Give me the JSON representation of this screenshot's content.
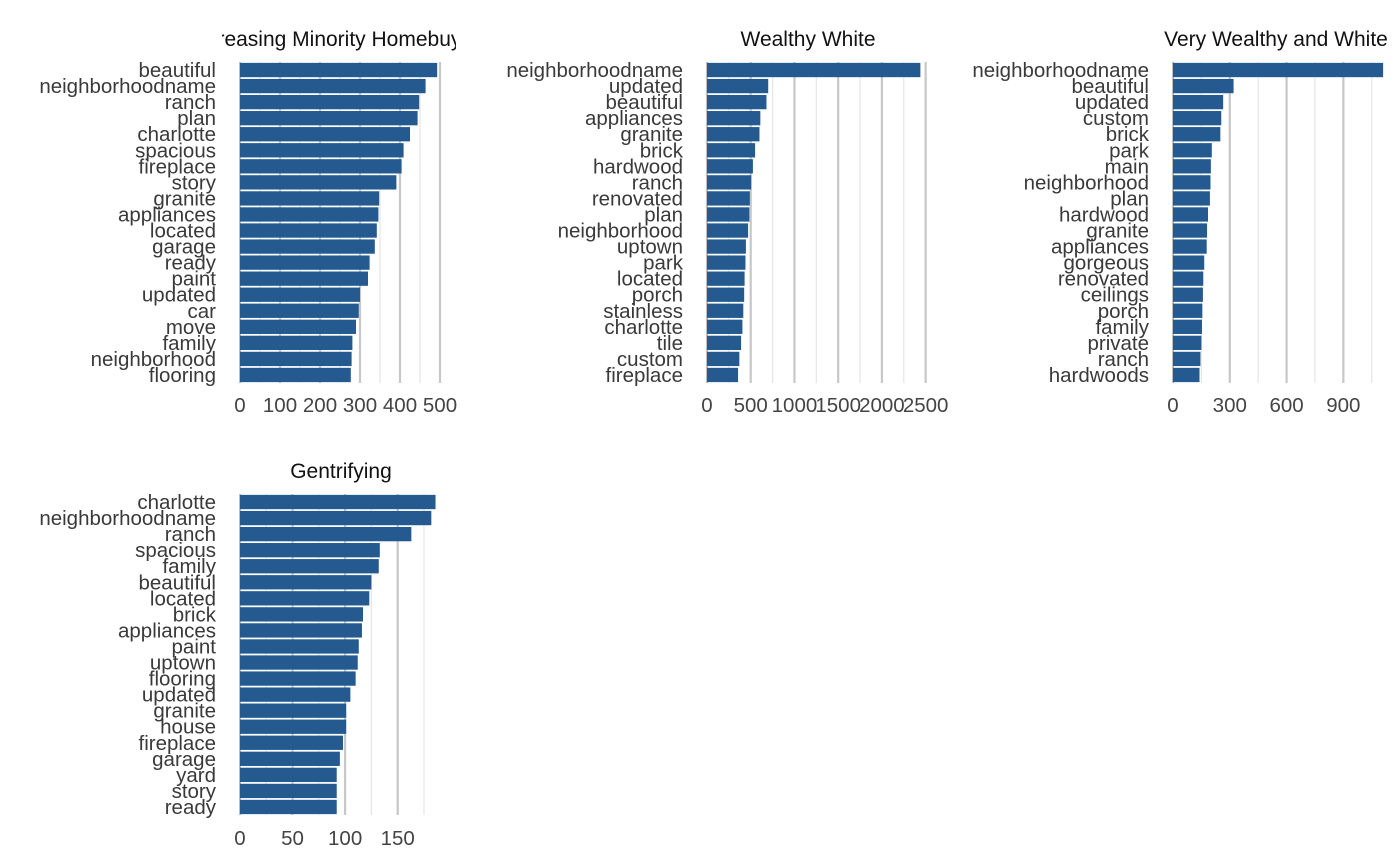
{
  "colors": {
    "bar": "#245a8f",
    "major_grid": "#c7c7c7",
    "minor_grid": "#e6e6e6",
    "text": "#3a3a3a"
  },
  "chart_data": [
    {
      "type": "bar",
      "orientation": "horizontal",
      "title": "Increasing Minority Homebuyers",
      "categories": [
        "beautiful",
        "neighborhoodname",
        "ranch",
        "plan",
        "charlotte",
        "spacious",
        "fireplace",
        "story",
        "granite",
        "appliances",
        "located",
        "garage",
        "ready",
        "paint",
        "updated",
        "car",
        "move",
        "family",
        "neighborhood",
        "flooring"
      ],
      "values": [
        493,
        464,
        448,
        444,
        425,
        409,
        404,
        391,
        348,
        346,
        342,
        337,
        324,
        320,
        300,
        297,
        290,
        281,
        279,
        277
      ],
      "xlim": [
        0,
        530
      ],
      "xticks": [
        0,
        100,
        200,
        300,
        400,
        500
      ],
      "xtick_labels": [
        "0",
        "100",
        "200",
        "300",
        "400",
        "500"
      ],
      "grid": true
    },
    {
      "type": "bar",
      "orientation": "horizontal",
      "title": "Wealthy White",
      "categories": [
        "neighborhoodname",
        "updated",
        "beautiful",
        "appliances",
        "granite",
        "brick",
        "hardwood",
        "ranch",
        "renovated",
        "plan",
        "neighborhood",
        "uptown",
        "park",
        "located",
        "porch",
        "stainless",
        "charlotte",
        "tile",
        "custom",
        "fireplace"
      ],
      "values": [
        2440,
        700,
        680,
        610,
        600,
        550,
        525,
        505,
        490,
        485,
        470,
        445,
        440,
        430,
        425,
        415,
        405,
        390,
        370,
        355
      ],
      "xlim": [
        0,
        2550
      ],
      "xticks": [
        0,
        500,
        1000,
        1500,
        2000,
        2500
      ],
      "xtick_labels": [
        "0",
        "500",
        "1000",
        "1500",
        "2000",
        "2500"
      ],
      "grid": true
    },
    {
      "type": "bar",
      "orientation": "horizontal",
      "title": "Very Wealthy and White",
      "categories": [
        "neighborhoodname",
        "beautiful",
        "updated",
        "custom",
        "brick",
        "park",
        "main",
        "neighborhood",
        "plan",
        "hardwood",
        "granite",
        "appliances",
        "gorgeous",
        "renovated",
        "ceilings",
        "porch",
        "family",
        "private",
        "ranch",
        "hardwoods"
      ],
      "values": [
        1110,
        320,
        265,
        255,
        250,
        205,
        200,
        198,
        195,
        185,
        180,
        178,
        165,
        160,
        158,
        155,
        153,
        150,
        145,
        140
      ],
      "xlim": [
        0,
        1120
      ],
      "xticks": [
        0,
        300,
        600,
        900
      ],
      "xtick_labels": [
        "0",
        "300",
        "600",
        "900"
      ],
      "grid": true
    },
    {
      "type": "bar",
      "orientation": "horizontal",
      "title": "Gentrifying",
      "categories": [
        "charlotte",
        "neighborhoodname",
        "ranch",
        "spacious",
        "family",
        "beautiful",
        "located",
        "brick",
        "appliances",
        "paint",
        "uptown",
        "flooring",
        "updated",
        "granite",
        "house",
        "fireplace",
        "garage",
        "yard",
        "story",
        "ready"
      ],
      "values": [
        186,
        182,
        163,
        133,
        132,
        125,
        123,
        117,
        116,
        113,
        112,
        110,
        105,
        101,
        101,
        98,
        95,
        92,
        92,
        92
      ],
      "xlim": [
        0,
        195
      ],
      "xticks": [
        0,
        50,
        100,
        150
      ],
      "xtick_labels": [
        "0",
        "50",
        "100",
        "150"
      ],
      "grid": true
    }
  ]
}
